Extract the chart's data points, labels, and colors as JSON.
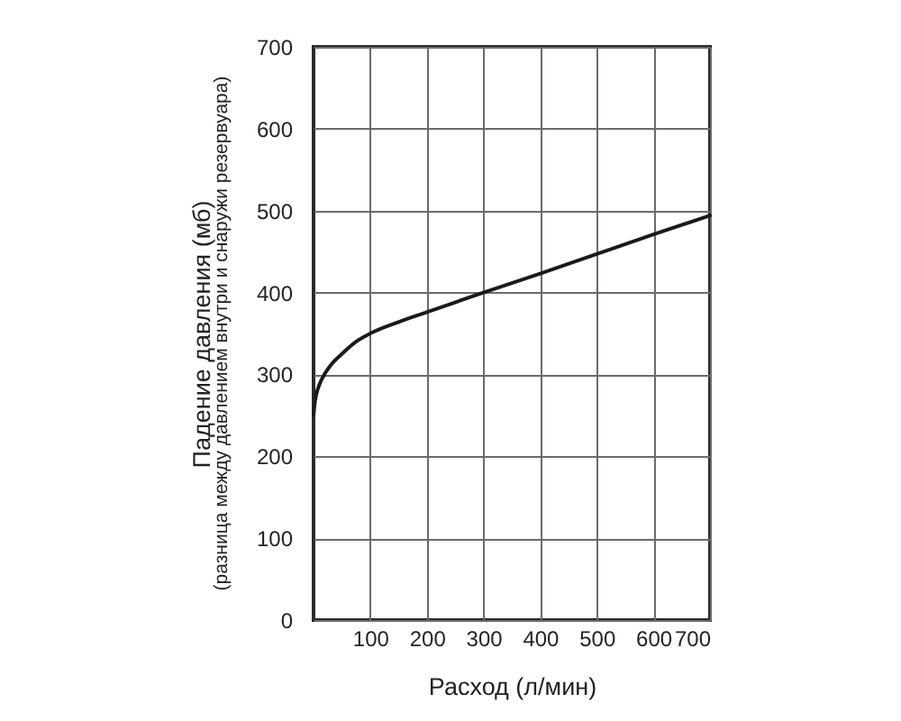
{
  "chart_data": {
    "type": "line",
    "xlabel": "Расход (л/мин)",
    "ylabel": "Падение давления (мб)\n(разница между давлением внутри и снаружи резервуара)",
    "x": [
      0,
      2,
      5,
      10,
      20,
      30,
      50,
      75,
      100,
      150,
      200,
      300,
      400,
      500,
      600,
      700
    ],
    "series": [
      {
        "color": "#1a1a1a",
        "values": [
          250,
          264,
          276,
          287,
          301,
          311,
          325,
          340,
          350,
          364,
          376,
          400,
          423,
          447,
          471,
          494
        ]
      }
    ],
    "xlim": [
      0,
      700
    ],
    "ylim": [
      0,
      700
    ],
    "xticks": [
      100,
      200,
      300,
      400,
      500,
      600,
      700
    ],
    "yticks": [
      0,
      100,
      200,
      300,
      400,
      500,
      600,
      700
    ],
    "grid": true,
    "line_style": "solid"
  }
}
